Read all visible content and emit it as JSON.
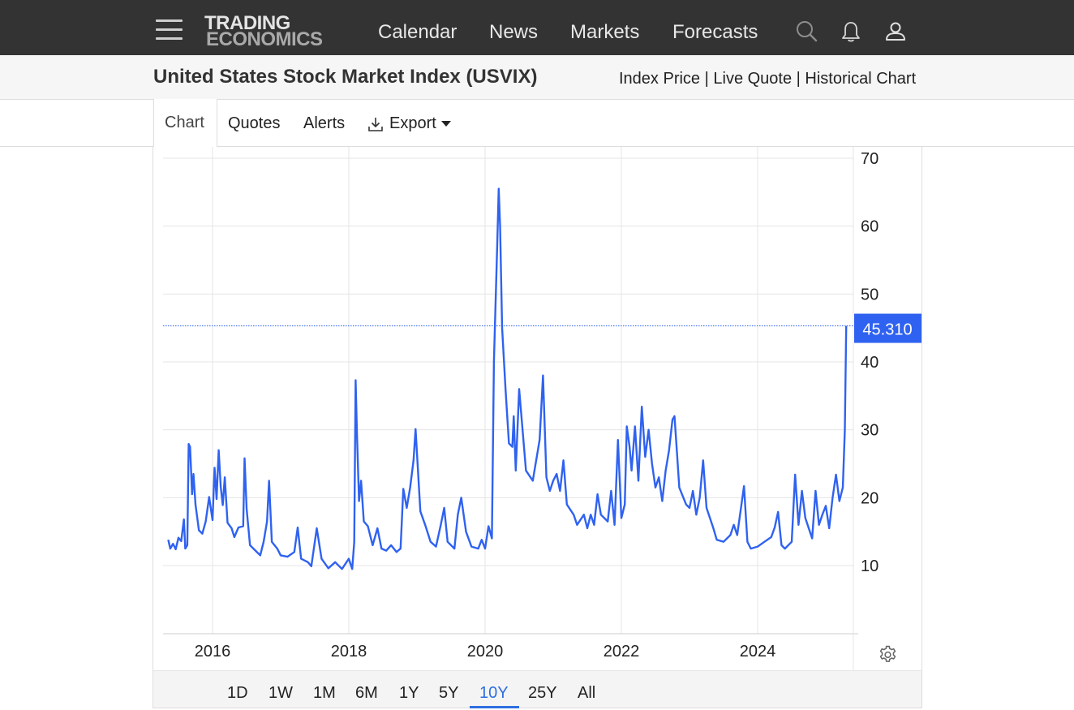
{
  "header": {
    "logo_line1": "TRADING",
    "logo_line2": "ECONOMICS",
    "nav": [
      "Calendar",
      "News",
      "Markets",
      "Forecasts"
    ],
    "icons": [
      "menu-icon",
      "search-icon",
      "bell-icon",
      "user-icon"
    ]
  },
  "title": {
    "text": "United States Stock Market Index (USVIX)",
    "links": [
      "Index Price",
      "Live Quote",
      "Historical Chart"
    ],
    "separator": " | "
  },
  "tabs": {
    "chart": "Chart",
    "quotes": "Quotes",
    "alerts": "Alerts",
    "export": "Export"
  },
  "ranges": {
    "items": [
      "1D",
      "1W",
      "1M",
      "6M",
      "1Y",
      "5Y",
      "10Y",
      "25Y",
      "All"
    ],
    "active": "10Y"
  },
  "colors": {
    "line": "#2f62f0",
    "accent": "#2f6ee0",
    "nav_bg": "#333333",
    "grid": "#e5e5e5"
  },
  "chart_data": {
    "type": "line",
    "title": "",
    "xlabel": "",
    "ylabel": "",
    "xlim": [
      2015.35,
      2025.6
    ],
    "ylim": [
      0,
      70
    ],
    "y_ticks": [
      10,
      20,
      30,
      40,
      50,
      60,
      70
    ],
    "x_ticks": [
      2016,
      2018,
      2020,
      2022,
      2024
    ],
    "last_value_label": "45.310",
    "last_value": 45.31,
    "grid": true,
    "legend": "none",
    "series": [
      {
        "values": [
          [
            2015.35,
            13.8
          ],
          [
            2015.38,
            12.5
          ],
          [
            2015.42,
            13.2
          ],
          [
            2015.46,
            12.4
          ],
          [
            2015.5,
            14.1
          ],
          [
            2015.54,
            13.6
          ],
          [
            2015.58,
            16.8
          ],
          [
            2015.6,
            12.5
          ],
          [
            2015.63,
            13.0
          ],
          [
            2015.65,
            27.9
          ],
          [
            2015.67,
            27.5
          ],
          [
            2015.7,
            20.5
          ],
          [
            2015.72,
            23.5
          ],
          [
            2015.75,
            19.0
          ],
          [
            2015.8,
            15.2
          ],
          [
            2015.85,
            14.7
          ],
          [
            2015.9,
            16.5
          ],
          [
            2015.95,
            20.1
          ],
          [
            2016.0,
            16.7
          ],
          [
            2016.03,
            24.4
          ],
          [
            2016.06,
            19.8
          ],
          [
            2016.09,
            27.0
          ],
          [
            2016.12,
            21.6
          ],
          [
            2016.15,
            18.9
          ],
          [
            2016.18,
            23.0
          ],
          [
            2016.22,
            16.3
          ],
          [
            2016.28,
            15.5
          ],
          [
            2016.32,
            14.2
          ],
          [
            2016.38,
            15.6
          ],
          [
            2016.45,
            15.8
          ],
          [
            2016.47,
            25.8
          ],
          [
            2016.5,
            18.4
          ],
          [
            2016.55,
            13.0
          ],
          [
            2016.6,
            12.5
          ],
          [
            2016.7,
            11.5
          ],
          [
            2016.75,
            13.5
          ],
          [
            2016.8,
            16.5
          ],
          [
            2016.83,
            22.5
          ],
          [
            2016.87,
            13.5
          ],
          [
            2016.95,
            12.5
          ],
          [
            2017.0,
            11.5
          ],
          [
            2017.1,
            11.3
          ],
          [
            2017.2,
            12.0
          ],
          [
            2017.25,
            15.6
          ],
          [
            2017.3,
            11.0
          ],
          [
            2017.4,
            10.5
          ],
          [
            2017.45,
            9.9
          ],
          [
            2017.53,
            15.5
          ],
          [
            2017.6,
            11.0
          ],
          [
            2017.7,
            9.6
          ],
          [
            2017.8,
            10.5
          ],
          [
            2017.9,
            9.5
          ],
          [
            2018.0,
            11.0
          ],
          [
            2018.05,
            9.5
          ],
          [
            2018.08,
            13.5
          ],
          [
            2018.1,
            37.3
          ],
          [
            2018.12,
            29.2
          ],
          [
            2018.15,
            19.5
          ],
          [
            2018.18,
            22.5
          ],
          [
            2018.22,
            16.5
          ],
          [
            2018.28,
            15.8
          ],
          [
            2018.35,
            13.0
          ],
          [
            2018.42,
            15.5
          ],
          [
            2018.48,
            12.5
          ],
          [
            2018.55,
            12.2
          ],
          [
            2018.62,
            13.0
          ],
          [
            2018.7,
            12.0
          ],
          [
            2018.76,
            12.5
          ],
          [
            2018.8,
            21.3
          ],
          [
            2018.85,
            18.5
          ],
          [
            2018.9,
            21.5
          ],
          [
            2018.95,
            25.5
          ],
          [
            2018.98,
            30.1
          ],
          [
            2019.05,
            18.0
          ],
          [
            2019.12,
            16.0
          ],
          [
            2019.2,
            13.5
          ],
          [
            2019.28,
            12.8
          ],
          [
            2019.35,
            16.0
          ],
          [
            2019.4,
            18.5
          ],
          [
            2019.45,
            13.5
          ],
          [
            2019.55,
            12.5
          ],
          [
            2019.6,
            17.5
          ],
          [
            2019.65,
            20.0
          ],
          [
            2019.72,
            15.0
          ],
          [
            2019.8,
            12.8
          ],
          [
            2019.9,
            12.5
          ],
          [
            2019.95,
            13.8
          ],
          [
            2020.0,
            12.5
          ],
          [
            2020.05,
            15.8
          ],
          [
            2020.1,
            14.0
          ],
          [
            2020.13,
            40.1
          ],
          [
            2020.18,
            57.8
          ],
          [
            2020.2,
            65.5
          ],
          [
            2020.22,
            60.0
          ],
          [
            2020.25,
            45.0
          ],
          [
            2020.3,
            36.0
          ],
          [
            2020.35,
            28.0
          ],
          [
            2020.4,
            27.5
          ],
          [
            2020.42,
            32.0
          ],
          [
            2020.45,
            24.0
          ],
          [
            2020.5,
            36.0
          ],
          [
            2020.55,
            30.0
          ],
          [
            2020.6,
            24.0
          ],
          [
            2020.7,
            22.5
          ],
          [
            2020.75,
            25.5
          ],
          [
            2020.8,
            28.5
          ],
          [
            2020.85,
            38.0
          ],
          [
            2020.9,
            23.0
          ],
          [
            2020.95,
            21.0
          ],
          [
            2021.0,
            22.5
          ],
          [
            2021.05,
            23.5
          ],
          [
            2021.1,
            21.0
          ],
          [
            2021.15,
            25.5
          ],
          [
            2021.2,
            19.0
          ],
          [
            2021.3,
            17.5
          ],
          [
            2021.35,
            16.0
          ],
          [
            2021.45,
            17.5
          ],
          [
            2021.5,
            15.5
          ],
          [
            2021.55,
            17.5
          ],
          [
            2021.6,
            16.0
          ],
          [
            2021.65,
            20.5
          ],
          [
            2021.7,
            17.5
          ],
          [
            2021.8,
            16.5
          ],
          [
            2021.85,
            21.0
          ],
          [
            2021.9,
            16.0
          ],
          [
            2021.95,
            28.5
          ],
          [
            2022.0,
            17.0
          ],
          [
            2022.05,
            19.0
          ],
          [
            2022.08,
            30.5
          ],
          [
            2022.12,
            27.5
          ],
          [
            2022.15,
            24.0
          ],
          [
            2022.2,
            30.5
          ],
          [
            2022.25,
            22.5
          ],
          [
            2022.3,
            33.4
          ],
          [
            2022.35,
            26.0
          ],
          [
            2022.4,
            30.0
          ],
          [
            2022.45,
            25.0
          ],
          [
            2022.5,
            21.5
          ],
          [
            2022.55,
            23.0
          ],
          [
            2022.6,
            19.5
          ],
          [
            2022.65,
            24.0
          ],
          [
            2022.7,
            27.0
          ],
          [
            2022.75,
            31.5
          ],
          [
            2022.78,
            32.0
          ],
          [
            2022.82,
            26.0
          ],
          [
            2022.85,
            21.5
          ],
          [
            2022.95,
            19.0
          ],
          [
            2023.0,
            18.5
          ],
          [
            2023.05,
            21.0
          ],
          [
            2023.1,
            17.5
          ],
          [
            2023.15,
            20.0
          ],
          [
            2023.2,
            25.5
          ],
          [
            2023.25,
            18.5
          ],
          [
            2023.3,
            17.0
          ],
          [
            2023.35,
            15.5
          ],
          [
            2023.4,
            13.8
          ],
          [
            2023.5,
            13.5
          ],
          [
            2023.6,
            14.5
          ],
          [
            2023.65,
            16.0
          ],
          [
            2023.7,
            14.5
          ],
          [
            2023.8,
            21.7
          ],
          [
            2023.85,
            13.5
          ],
          [
            2023.9,
            12.5
          ],
          [
            2024.0,
            12.8
          ],
          [
            2024.1,
            13.5
          ],
          [
            2024.2,
            14.2
          ],
          [
            2024.25,
            15.6
          ],
          [
            2024.3,
            17.9
          ],
          [
            2024.35,
            13.0
          ],
          [
            2024.4,
            12.5
          ],
          [
            2024.5,
            13.5
          ],
          [
            2024.55,
            23.4
          ],
          [
            2024.6,
            16.0
          ],
          [
            2024.65,
            21.0
          ],
          [
            2024.7,
            17.0
          ],
          [
            2024.75,
            15.5
          ],
          [
            2024.8,
            14.0
          ],
          [
            2024.85,
            21.0
          ],
          [
            2024.9,
            16.0
          ],
          [
            2024.95,
            17.5
          ],
          [
            2025.0,
            18.8
          ],
          [
            2025.05,
            15.5
          ],
          [
            2025.1,
            20.0
          ],
          [
            2025.15,
            23.4
          ],
          [
            2025.2,
            19.5
          ],
          [
            2025.25,
            21.5
          ],
          [
            2025.28,
            30.0
          ],
          [
            2025.3,
            45.31
          ]
        ]
      }
    ]
  }
}
